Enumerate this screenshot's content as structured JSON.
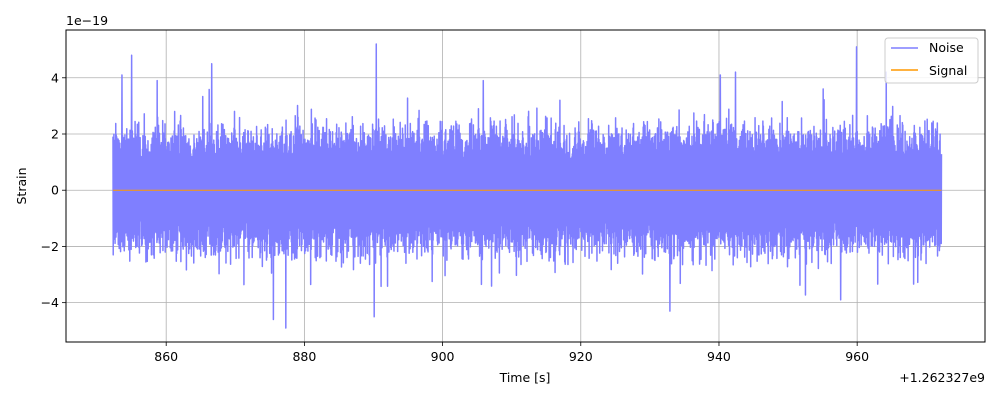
{
  "chart_data": {
    "type": "line",
    "title": "",
    "xlabel": "Time [s]",
    "ylabel": "Strain",
    "x_offset_label": "+1.262327e9",
    "y_scale_label": "1e−19",
    "xlim": [
      845.5,
      978.5
    ],
    "ylim": [
      -5.4,
      5.7
    ],
    "x_ticks": [
      860,
      880,
      900,
      920,
      940,
      960
    ],
    "x_tick_labels": [
      "860",
      "880",
      "900",
      "920",
      "940",
      "960"
    ],
    "y_ticks": [
      -4,
      -2,
      0,
      2,
      4
    ],
    "y_tick_labels": [
      "−4",
      "−2",
      "0",
      "2",
      "4"
    ],
    "grid": true,
    "legend_position": "top-right",
    "series": [
      {
        "name": "Noise",
        "color": "#7f7fff",
        "x_range": [
          852.3,
          972.2
        ],
        "y_range_approx": [
          -4.9,
          5.25
        ],
        "peaks": [
          [
            853.6,
            4.1
          ],
          [
            855.0,
            4.8
          ],
          [
            858.7,
            3.9
          ],
          [
            866.6,
            4.5
          ],
          [
            890.4,
            5.2
          ],
          [
            905.9,
            3.9
          ],
          [
            940.2,
            4.1
          ],
          [
            942.4,
            4.2
          ],
          [
            959.9,
            5.1
          ],
          [
            964.2,
            4.2
          ],
          [
            875.5,
            -4.6
          ],
          [
            877.3,
            -4.9
          ],
          [
            890.1,
            -4.5
          ],
          [
            932.9,
            -4.3
          ],
          [
            957.6,
            -3.9
          ]
        ]
      },
      {
        "name": "Signal",
        "color": "#ff9900",
        "x": [
          852.3,
          972.2
        ],
        "y": [
          0,
          0
        ]
      }
    ]
  }
}
